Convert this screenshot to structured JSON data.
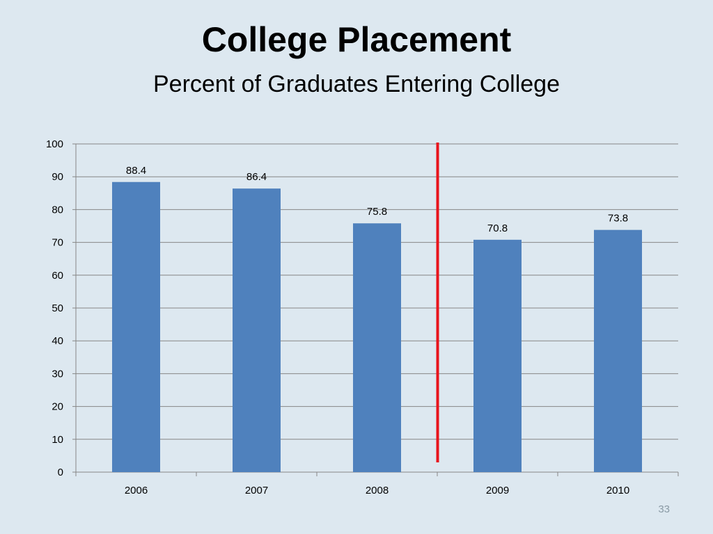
{
  "slide": {
    "title": "College Placement",
    "subtitle": "Percent of Graduates Entering College",
    "page_number": "33"
  },
  "colors": {
    "background": "#dde8f0",
    "bar": "#4f81bd",
    "gridline": "#868686",
    "marker_line": "#e8141c"
  },
  "chart_data": {
    "type": "bar",
    "title": "College Placement",
    "subtitle": "Percent of Graduates Entering College",
    "xlabel": "",
    "ylabel": "",
    "categories": [
      "2006",
      "2007",
      "2008",
      "2009",
      "2010"
    ],
    "values": [
      88.4,
      86.4,
      75.8,
      70.8,
      73.8
    ],
    "data_labels": [
      "88.4",
      "86.4",
      "75.8",
      "70.8",
      "73.8"
    ],
    "ylim": [
      0,
      100
    ],
    "yticks": [
      0,
      10,
      20,
      30,
      40,
      50,
      60,
      70,
      80,
      90,
      100
    ],
    "grid": true,
    "legend": "none",
    "annotation": "red vertical divider between 2008 and 2009"
  }
}
